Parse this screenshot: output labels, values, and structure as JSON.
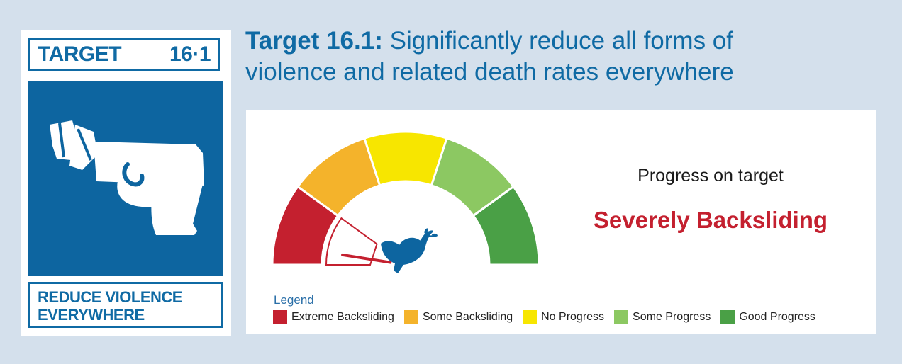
{
  "card": {
    "target_word": "TARGET",
    "target_number": "16·1",
    "caption_line1": "REDUCE VIOLENCE",
    "caption_line2": "EVERYWHERE",
    "icon": "gun-with-tied-barrel-icon"
  },
  "heading": {
    "bold": "Target 16.1:",
    "line1_rest": " Significantly reduce all forms of",
    "line2": "violence and related death rates everywhere"
  },
  "progress": {
    "label": "Progress on target",
    "status": "Severely Backsliding",
    "status_color": "#c4202f"
  },
  "gauge": {
    "segments": [
      {
        "name": "Extreme Backsliding",
        "color": "#c4202f"
      },
      {
        "name": "Some Backsliding",
        "color": "#f4b32b"
      },
      {
        "name": "No Progress",
        "color": "#f7e600"
      },
      {
        "name": "Some Progress",
        "color": "#8cc862"
      },
      {
        "name": "Good Progress",
        "color": "#4aa046"
      }
    ],
    "needle_level": 0.05,
    "pointer_icon": "dove-with-olive-branch-icon"
  },
  "legend": {
    "title": "Legend",
    "items": [
      {
        "label": "Extreme Backsliding",
        "color": "#c4202f"
      },
      {
        "label": "Some Backsliding",
        "color": "#f4b32b"
      },
      {
        "label": "No Progress",
        "color": "#f7e600"
      },
      {
        "label": "Some Progress",
        "color": "#8cc862"
      },
      {
        "label": "Good Progress",
        "color": "#4aa046"
      }
    ]
  }
}
